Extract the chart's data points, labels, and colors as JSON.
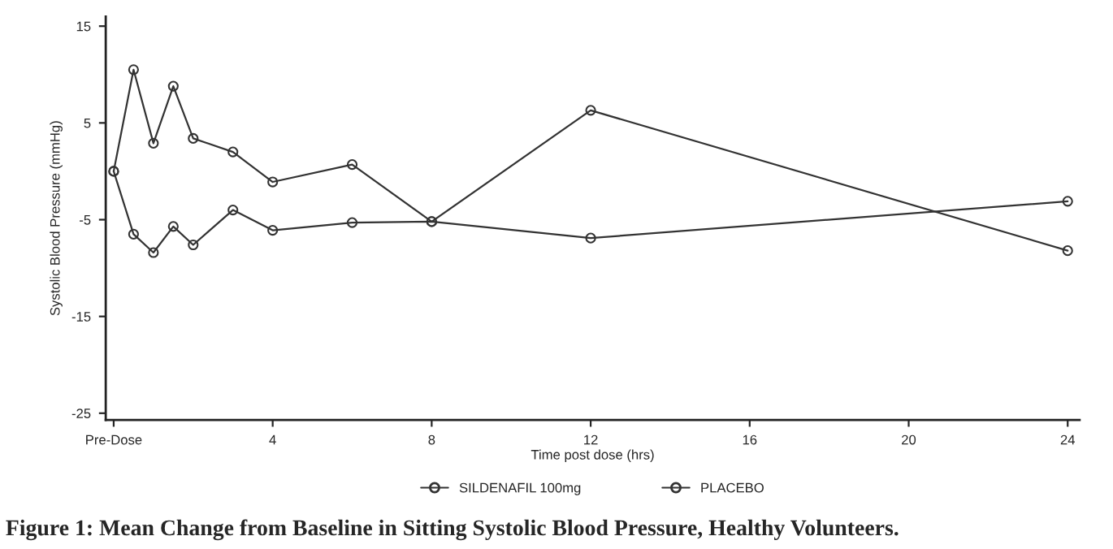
{
  "chart_data": {
    "type": "line",
    "xlabel": "Time post dose (hrs)",
    "ylabel": "Systolic Blood Pressure (mmHg)",
    "x": [
      0,
      0.5,
      1,
      1.5,
      2,
      3,
      4,
      6,
      8,
      12,
      24
    ],
    "series": [
      {
        "name": "SILDENAFIL 100mg",
        "color": "#333333",
        "values": [
          0,
          -6.5,
          -8.4,
          -5.7,
          -7.6,
          -4.0,
          -6.1,
          -5.3,
          -5.2,
          -6.9,
          -3.1
        ]
      },
      {
        "name": "PLACEBO",
        "color": "#333333",
        "values": [
          0,
          10.5,
          2.9,
          8.8,
          3.4,
          2.0,
          -1.1,
          0.7,
          -5.2,
          6.3,
          -8.2
        ]
      }
    ],
    "xlim": [
      -0.2,
      24.3
    ],
    "ylim": [
      -25.7,
      16
    ],
    "xticks": [
      {
        "value": 0,
        "label": "Pre-Dose"
      },
      4,
      8,
      12,
      16,
      20,
      24
    ],
    "yticks": [
      -25,
      -15,
      -5,
      5,
      15
    ],
    "marker": "circle",
    "line_style": "solid",
    "grid": false,
    "legend": "bottom",
    "annotations": [
      "Figure 1: Mean Change from Baseline in Sitting Systolic Blood Pressure, Healthy Volunteers."
    ]
  }
}
